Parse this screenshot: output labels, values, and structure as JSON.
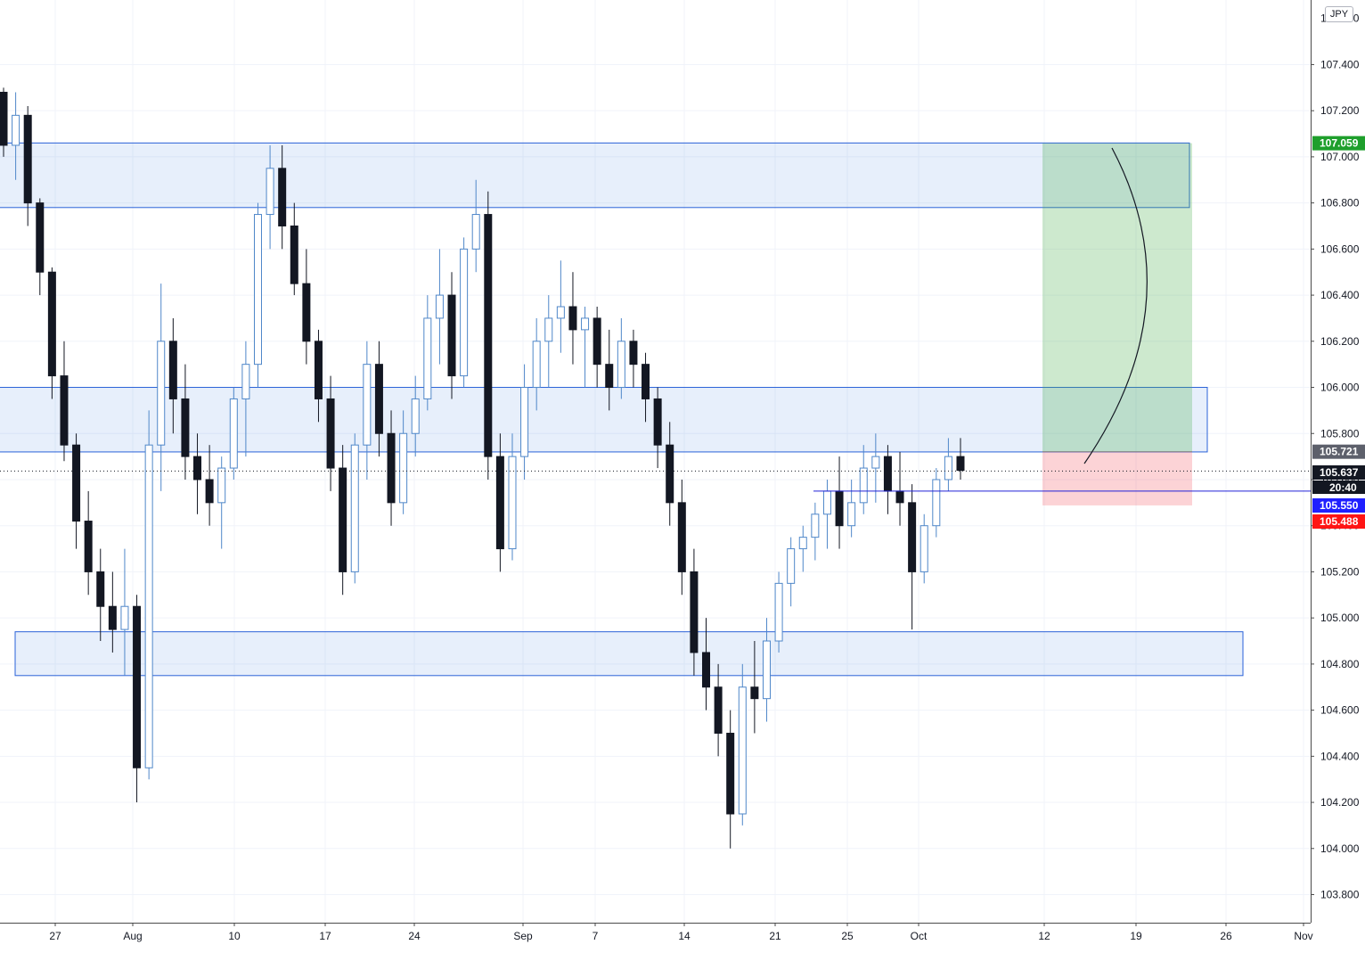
{
  "chart_data": {
    "type": "candlestick",
    "currency": "JPY",
    "x_axis": {
      "tick_labels": [
        "27",
        "Aug",
        "10",
        "17",
        "24",
        "Sep",
        "7",
        "14",
        "21",
        "25",
        "Oct",
        "12",
        "19",
        "26",
        "Nov"
      ]
    },
    "y_axis": {
      "range": [
        103.7,
        107.7
      ],
      "tick_values": [
        103.8,
        104.0,
        104.2,
        104.4,
        104.6,
        104.8,
        105.0,
        105.2,
        105.4,
        105.6,
        105.8,
        106.0,
        106.2,
        106.4,
        106.6,
        106.8,
        107.0,
        107.2,
        107.4
      ],
      "tick_labels": [
        "103.800",
        "104.000",
        "104.200",
        "104.400",
        "104.600",
        "104.800",
        "105.000",
        "105.200",
        "105.400",
        "105.600",
        "105.800",
        "106.000",
        "106.200",
        "106.400",
        "106.600",
        "106.800",
        "107.000",
        "107.200",
        "107.400"
      ],
      "partial_top_label": "107.600"
    },
    "price_markers": [
      {
        "value": 107.059,
        "label": "107.059",
        "color": "#1e9f2c",
        "role": "target"
      },
      {
        "value": 105.721,
        "label": "105.721",
        "color": "#5d606b",
        "role": "entry"
      },
      {
        "value": 105.637,
        "label": "105.637",
        "color": "#131722",
        "role": "last-price"
      },
      {
        "value": 105.55,
        "label": "105.550",
        "color": "#2020ff",
        "role": "horizontal-line"
      },
      {
        "value": 105.488,
        "label": "105.488",
        "color": "#ff1515",
        "role": "stop"
      }
    ],
    "countdown": "20:40",
    "zones": [
      {
        "name": "upper",
        "low": 106.78,
        "high": 107.06
      },
      {
        "name": "middle",
        "low": 105.72,
        "high": 106.0
      },
      {
        "name": "lower",
        "low": 104.75,
        "high": 104.94
      }
    ],
    "position": {
      "entry": 105.721,
      "target": 107.059,
      "stop": 105.488,
      "side": "long"
    },
    "horizontal_line": 105.55,
    "candles_ohlc": [
      [
        107.28,
        107.3,
        107.0,
        107.05
      ],
      [
        107.05,
        107.28,
        106.9,
        107.18
      ],
      [
        107.18,
        107.22,
        106.7,
        106.8
      ],
      [
        106.8,
        106.82,
        106.4,
        106.5
      ],
      [
        106.5,
        106.52,
        105.95,
        106.05
      ],
      [
        106.05,
        106.2,
        105.68,
        105.75
      ],
      [
        105.75,
        105.8,
        105.3,
        105.42
      ],
      [
        105.42,
        105.55,
        105.1,
        105.2
      ],
      [
        105.2,
        105.3,
        104.9,
        105.05
      ],
      [
        105.05,
        105.2,
        104.85,
        104.95
      ],
      [
        104.95,
        105.3,
        104.75,
        105.05
      ],
      [
        105.05,
        105.1,
        104.2,
        104.35
      ],
      [
        104.35,
        105.9,
        104.3,
        105.75
      ],
      [
        105.75,
        106.45,
        105.55,
        106.2
      ],
      [
        106.2,
        106.3,
        105.8,
        105.95
      ],
      [
        105.95,
        106.1,
        105.6,
        105.7
      ],
      [
        105.7,
        105.8,
        105.45,
        105.6
      ],
      [
        105.6,
        105.75,
        105.4,
        105.5
      ],
      [
        105.5,
        105.7,
        105.3,
        105.65
      ],
      [
        105.65,
        106.0,
        105.6,
        105.95
      ],
      [
        105.95,
        106.2,
        105.7,
        106.1
      ],
      [
        106.1,
        106.8,
        106.0,
        106.75
      ],
      [
        106.75,
        107.05,
        106.6,
        106.95
      ],
      [
        106.95,
        107.05,
        106.6,
        106.7
      ],
      [
        106.7,
        106.8,
        106.4,
        106.45
      ],
      [
        106.45,
        106.6,
        106.1,
        106.2
      ],
      [
        106.2,
        106.25,
        105.85,
        105.95
      ],
      [
        105.95,
        106.05,
        105.55,
        105.65
      ],
      [
        105.65,
        105.75,
        105.1,
        105.2
      ],
      [
        105.2,
        105.8,
        105.15,
        105.75
      ],
      [
        105.75,
        106.2,
        105.6,
        106.1
      ],
      [
        106.1,
        106.2,
        105.7,
        105.8
      ],
      [
        105.8,
        105.9,
        105.4,
        105.5
      ],
      [
        105.5,
        105.9,
        105.45,
        105.8
      ],
      [
        105.8,
        106.05,
        105.7,
        105.95
      ],
      [
        105.95,
        106.4,
        105.9,
        106.3
      ],
      [
        106.3,
        106.6,
        106.1,
        106.4
      ],
      [
        106.4,
        106.5,
        105.95,
        106.05
      ],
      [
        106.05,
        106.65,
        106.0,
        106.6
      ],
      [
        106.6,
        106.9,
        106.5,
        106.75
      ],
      [
        106.75,
        106.85,
        105.6,
        105.7
      ],
      [
        105.7,
        105.8,
        105.2,
        105.3
      ],
      [
        105.3,
        105.8,
        105.25,
        105.7
      ],
      [
        105.7,
        106.1,
        105.6,
        106.0
      ],
      [
        106.0,
        106.3,
        105.9,
        106.2
      ],
      [
        106.2,
        106.4,
        106.0,
        106.3
      ],
      [
        106.3,
        106.55,
        106.15,
        106.35
      ],
      [
        106.35,
        106.5,
        106.1,
        106.25
      ],
      [
        106.25,
        106.35,
        106.0,
        106.3
      ],
      [
        106.3,
        106.35,
        106.0,
        106.1
      ],
      [
        106.1,
        106.25,
        105.9,
        106.0
      ],
      [
        106.0,
        106.3,
        105.95,
        106.2
      ],
      [
        106.2,
        106.25,
        106.0,
        106.1
      ],
      [
        106.1,
        106.15,
        105.85,
        105.95
      ],
      [
        105.95,
        106.0,
        105.65,
        105.75
      ],
      [
        105.75,
        105.85,
        105.4,
        105.5
      ],
      [
        105.5,
        105.6,
        105.1,
        105.2
      ],
      [
        105.2,
        105.3,
        104.75,
        104.85
      ],
      [
        104.85,
        105.0,
        104.6,
        104.7
      ],
      [
        104.7,
        104.8,
        104.4,
        104.5
      ],
      [
        104.5,
        104.6,
        104.0,
        104.15
      ],
      [
        104.15,
        104.8,
        104.1,
        104.7
      ],
      [
        104.7,
        104.9,
        104.5,
        104.65
      ],
      [
        104.65,
        105.0,
        104.55,
        104.9
      ],
      [
        104.9,
        105.2,
        104.85,
        105.15
      ],
      [
        105.15,
        105.35,
        105.05,
        105.3
      ],
      [
        105.3,
        105.4,
        105.2,
        105.35
      ],
      [
        105.35,
        105.5,
        105.25,
        105.45
      ],
      [
        105.45,
        105.6,
        105.3,
        105.55
      ],
      [
        105.55,
        105.7,
        105.3,
        105.4
      ],
      [
        105.4,
        105.6,
        105.35,
        105.5
      ],
      [
        105.5,
        105.75,
        105.45,
        105.65
      ],
      [
        105.65,
        105.8,
        105.5,
        105.7
      ],
      [
        105.7,
        105.75,
        105.45,
        105.55
      ],
      [
        105.55,
        105.72,
        105.4,
        105.5
      ],
      [
        105.5,
        105.58,
        104.95,
        105.2
      ],
      [
        105.2,
        105.45,
        105.15,
        105.4
      ],
      [
        105.4,
        105.65,
        105.35,
        105.6
      ],
      [
        105.6,
        105.78,
        105.55,
        105.7
      ],
      [
        105.7,
        105.78,
        105.6,
        105.64
      ]
    ]
  }
}
